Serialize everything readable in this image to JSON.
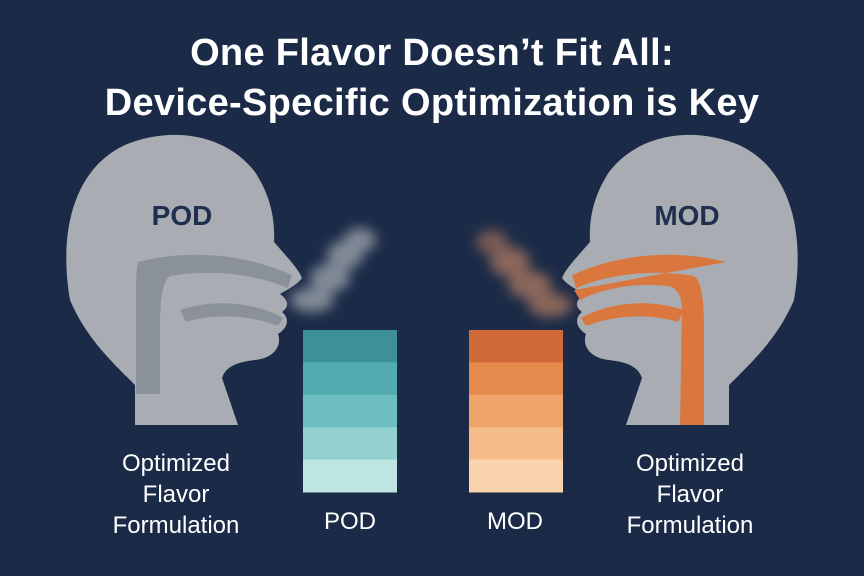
{
  "title": {
    "line1": "One Flavor Doesn’t Fit All:",
    "line2": "Device-Specific Optimization is Key"
  },
  "left_profile": {
    "head_label": "POD",
    "caption": [
      "Optimized",
      "Flavor",
      "Formulation"
    ],
    "airway_color": "#8b919a",
    "vapor_color": "#a4aab2"
  },
  "right_profile": {
    "head_label": "MOD",
    "caption": [
      "Optimized",
      "Flavor",
      "Formulation"
    ],
    "airway_color": "#d9773f",
    "vapor_color": "#b07a62"
  },
  "left_swatch": {
    "label": "POD",
    "colors": [
      "#3d9098",
      "#52abaf",
      "#6ebfc0",
      "#92d1cf",
      "#bfe5e3"
    ]
  },
  "right_swatch": {
    "label": "MOD",
    "colors": [
      "#d06a38",
      "#e58a4d",
      "#efa56a",
      "#f5bd8b",
      "#fad3ae"
    ]
  },
  "colors": {
    "background": "#1b2b47",
    "head": "#a9adb3",
    "head_text": "#1f2f4e",
    "text": "#ffffff"
  }
}
